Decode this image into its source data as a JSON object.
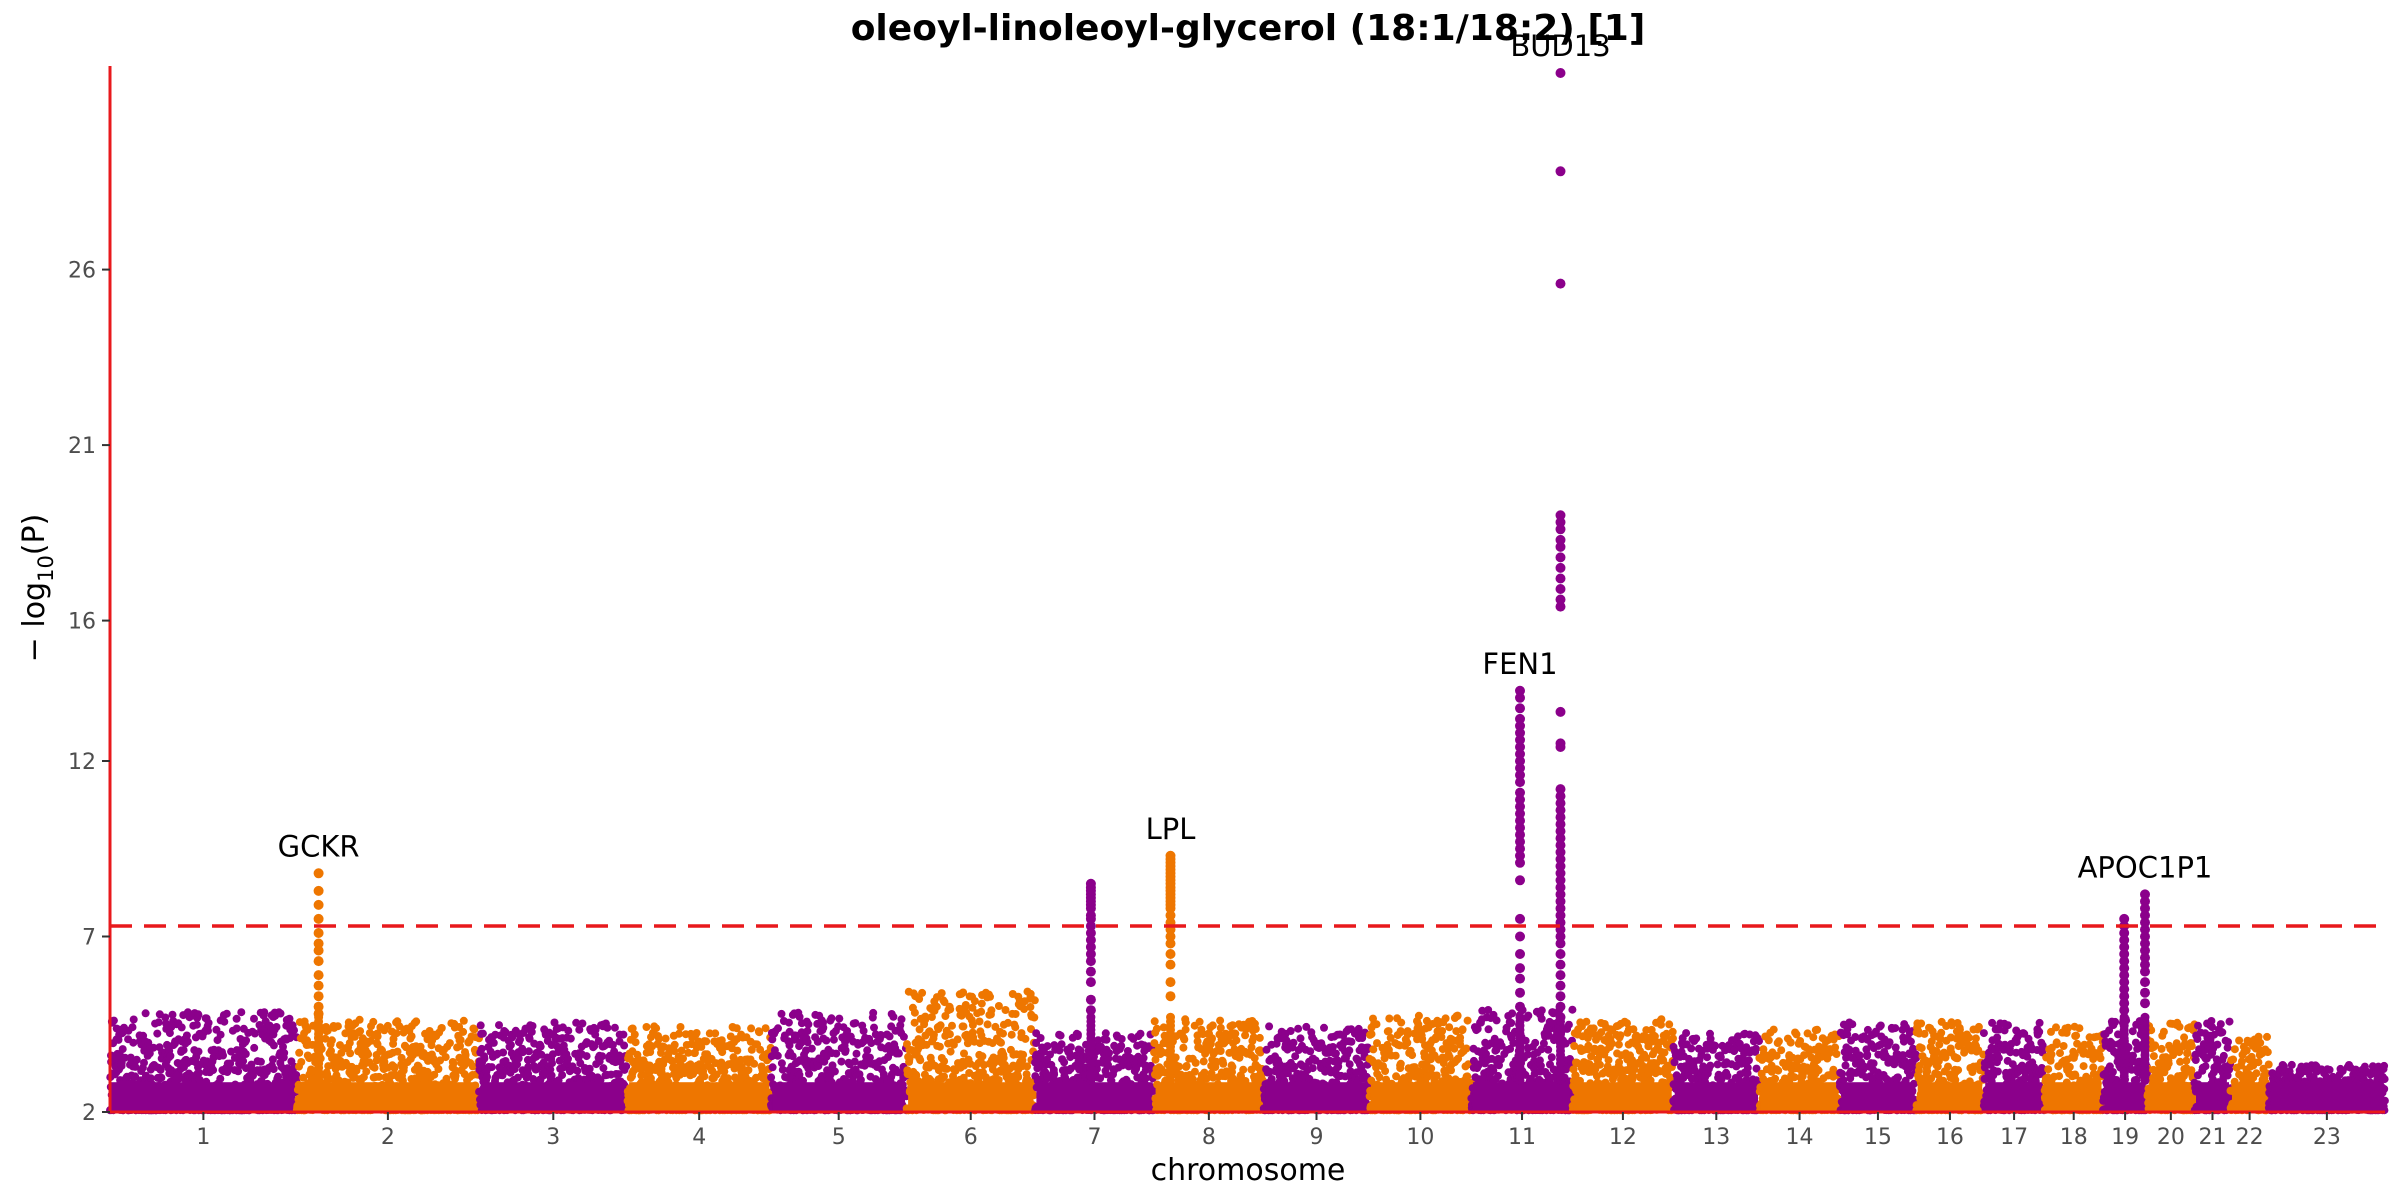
{
  "chart_data": {
    "type": "scatter",
    "title": "oleoyl-linoleoyl-glycerol (18:1/18:2) [1]",
    "xlabel": "chromosome",
    "ylabel_parts": {
      "prefix": "− log",
      "subscript": "10",
      "suffix": "(P)"
    },
    "ylim": [
      2,
      31.8
    ],
    "yticks": [
      2,
      7,
      12,
      16,
      21,
      26
    ],
    "significance_threshold": 7.3,
    "colors": {
      "odd": "#8b008b",
      "even": "#ee7600",
      "threshold": "#e8191c",
      "axis": "#e8191c"
    },
    "chromosomes": [
      {
        "label": "1",
        "length": 249
      },
      {
        "label": "2",
        "length": 243
      },
      {
        "label": "3",
        "length": 198
      },
      {
        "label": "4",
        "length": 191
      },
      {
        "label": "5",
        "length": 181
      },
      {
        "label": "6",
        "length": 171
      },
      {
        "label": "7",
        "length": 159
      },
      {
        "label": "8",
        "length": 146
      },
      {
        "label": "9",
        "length": 141
      },
      {
        "label": "10",
        "length": 136
      },
      {
        "label": "11",
        "length": 135
      },
      {
        "label": "12",
        "length": 134
      },
      {
        "label": "13",
        "length": 115
      },
      {
        "label": "14",
        "length": 107
      },
      {
        "label": "15",
        "length": 102
      },
      {
        "label": "16",
        "length": 90
      },
      {
        "label": "17",
        "length": 81
      },
      {
        "label": "18",
        "length": 78
      },
      {
        "label": "19",
        "length": 59
      },
      {
        "label": "20",
        "length": 63
      },
      {
        "label": "21",
        "length": 48
      },
      {
        "label": "22",
        "length": 51
      },
      {
        "label": "23",
        "length": 155
      }
    ],
    "chromosome_background_max": [
      4.8,
      4.6,
      4.5,
      4.4,
      4.8,
      5.4,
      4.2,
      4.6,
      4.4,
      4.7,
      4.9,
      4.6,
      4.2,
      4.3,
      4.5,
      4.6,
      4.5,
      4.4,
      4.6,
      4.5,
      4.6,
      4.1,
      3.3
    ],
    "peaks": [
      {
        "chromosome": "2",
        "position": 0.12,
        "max": 8.8,
        "gene": "GCKR",
        "points": [
          8.8,
          8.3,
          7.9,
          7.5,
          7.1,
          6.8,
          6.6,
          6.3,
          5.9,
          5.6,
          5.3,
          5.0,
          4.8
        ]
      },
      {
        "chromosome": "7",
        "position": 0.47,
        "max": 8.5,
        "gene": "",
        "points": [
          8.5,
          8.4,
          8.3,
          8.2,
          8.1,
          8.0,
          7.9,
          7.8,
          7.6,
          7.5,
          7.3,
          7.1,
          6.9,
          6.7,
          6.5,
          6.3,
          6.0,
          5.7,
          5.2,
          4.9
        ]
      },
      {
        "chromosome": "8",
        "position": 0.15,
        "max": 9.3,
        "gene": "LPL",
        "points": [
          9.3,
          9.2,
          9.1,
          9.0,
          8.9,
          8.8,
          8.7,
          8.6,
          8.5,
          8.4,
          8.3,
          8.2,
          8.1,
          8.0,
          7.9,
          7.8,
          7.6,
          7.4,
          7.2,
          7.0,
          6.8,
          6.5,
          6.2,
          5.7,
          5.3
        ]
      },
      {
        "chromosome": "11",
        "position": 0.48,
        "max": 14.0,
        "gene": "FEN1",
        "points": [
          14.0,
          13.8,
          13.5,
          13.2,
          13.0,
          12.8,
          12.6,
          12.4,
          12.2,
          12.0,
          11.8,
          11.6,
          11.4,
          11.1,
          10.9,
          10.7,
          10.5,
          10.3,
          10.1,
          9.9,
          9.7,
          9.5,
          9.3,
          9.1,
          8.6,
          7.5,
          7.0,
          6.5,
          6.1,
          5.8,
          5.4,
          5.0
        ]
      },
      {
        "chromosome": "11",
        "position": 0.88,
        "max": 31.6,
        "gene": "BUD13",
        "points": [
          31.6,
          28.8,
          25.6,
          19.0,
          18.8,
          18.6,
          18.3,
          18.1,
          17.8,
          17.5,
          17.2,
          16.9,
          16.6,
          16.4,
          13.4,
          12.5,
          12.4,
          11.2,
          11.0,
          10.8,
          10.6,
          10.4,
          10.2,
          10.0,
          9.8,
          9.6,
          9.4,
          9.2,
          9.0,
          8.8,
          8.6,
          8.4,
          8.2,
          8.0,
          7.8,
          7.6,
          7.4,
          7.2,
          7.0,
          6.8,
          6.5,
          6.2,
          5.9,
          5.6,
          5.3,
          5.0,
          4.7
        ]
      },
      {
        "chromosome": "19",
        "position": 0.48,
        "max": 7.5,
        "gene": "",
        "points": [
          7.5,
          7.3,
          7.1,
          6.9,
          6.7,
          6.5,
          6.3,
          6.1,
          5.9,
          5.7,
          5.5,
          5.3,
          5.1,
          4.9
        ]
      },
      {
        "chromosome": "19",
        "position": 0.95,
        "max": 8.2,
        "gene": "APOC1P1",
        "points": [
          8.2,
          8.0,
          7.8,
          7.6,
          7.4,
          7.2,
          7.0,
          6.8,
          6.6,
          6.4,
          6.2,
          6.0,
          5.7,
          5.4,
          5.1
        ]
      }
    ]
  }
}
